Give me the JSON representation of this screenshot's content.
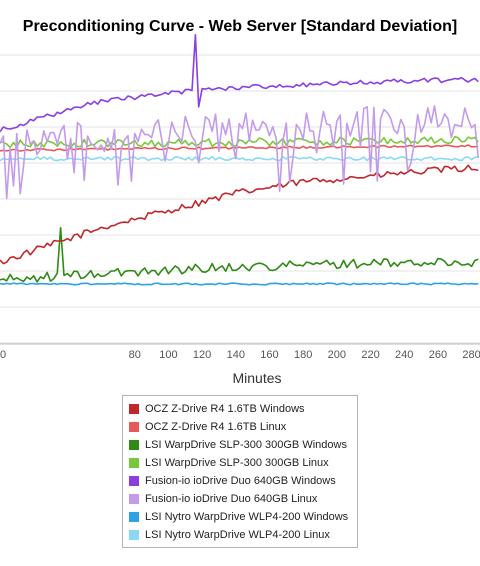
{
  "chart_data": {
    "type": "line",
    "title": "Preconditioning Curve - Web Server [Standard Deviation]",
    "xlabel": "Minutes",
    "ylabel": "",
    "xlim": [
      0,
      285
    ],
    "ylim": [
      0,
      100
    ],
    "x_ticks": [
      0,
      20,
      40,
      60,
      80,
      100,
      120,
      140,
      160,
      180,
      200,
      220,
      240,
      260,
      280
    ],
    "x_tick_labels": [
      "0",
      "",
      "",
      "",
      "80",
      "100",
      "120",
      "140",
      "160",
      "180",
      "200",
      "220",
      "240",
      "260",
      "280"
    ],
    "y_gridlines": [
      0,
      12.5,
      25,
      37.5,
      50,
      62.5,
      75,
      87.5,
      100
    ],
    "grid": true,
    "legend_placement": "bottom",
    "x_step": 2,
    "series": [
      {
        "name": "OCZ Z-Drive R4 1.6TB Windows",
        "color": "#c0272d",
        "points": [
          [
            0,
            28
          ],
          [
            20,
            32
          ],
          [
            40,
            36
          ],
          [
            60,
            40
          ],
          [
            80,
            43
          ],
          [
            100,
            46
          ],
          [
            120,
            49
          ],
          [
            140,
            52
          ],
          [
            160,
            54
          ],
          [
            180,
            56
          ],
          [
            200,
            57
          ],
          [
            220,
            58
          ],
          [
            240,
            59
          ],
          [
            260,
            60
          ],
          [
            285,
            61
          ]
        ],
        "noise": 1.2
      },
      {
        "name": "OCZ Z-Drive R4 1.6TB Linux",
        "color": "#e8585b",
        "points": [
          [
            0,
            67
          ],
          [
            285,
            68.5
          ]
        ],
        "noise": 0.4
      },
      {
        "name": "LSI WarpDrive SLP-300 300GB Windows",
        "color": "#2f8a14",
        "points": [
          [
            0,
            22
          ],
          [
            60,
            24
          ],
          [
            120,
            26
          ],
          [
            200,
            27.5
          ],
          [
            285,
            28
          ]
        ],
        "noise": 1.6,
        "spikes": [
          [
            36,
            40
          ]
        ]
      },
      {
        "name": "LSI WarpDrive SLP-300 300GB Linux",
        "color": "#78c83c",
        "points": [
          [
            0,
            69
          ],
          [
            285,
            70.5
          ]
        ],
        "noise": 1.4
      },
      {
        "name": "Fusion-io ioDrive Duo 640GB Windows",
        "color": "#8a3ee0",
        "points": [
          [
            0,
            74
          ],
          [
            30,
            79
          ],
          [
            60,
            84
          ],
          [
            90,
            86
          ],
          [
            120,
            88
          ],
          [
            150,
            89
          ],
          [
            200,
            90
          ],
          [
            240,
            91
          ],
          [
            285,
            91.5
          ]
        ],
        "noise": 0.8,
        "spikes": [
          [
            116,
            107
          ],
          [
            118,
            82
          ]
        ]
      },
      {
        "name": "Fusion-io ioDrive Duo 640GB Linux",
        "color": "#c39be8",
        "points": [
          [
            0,
            70
          ],
          [
            285,
            79
          ]
        ],
        "noise": 5.5
      },
      {
        "name": "LSI Nytro WarpDrive WLP4-200 Windows",
        "color": "#2ea3e2",
        "points": [
          [
            0,
            20.5
          ],
          [
            285,
            20.5
          ]
        ],
        "noise": 0.3
      },
      {
        "name": "LSI Nytro WarpDrive WLP4-200 Linux",
        "color": "#8ad8f5",
        "points": [
          [
            0,
            64
          ],
          [
            285,
            64
          ]
        ],
        "noise": 0.7
      }
    ]
  }
}
